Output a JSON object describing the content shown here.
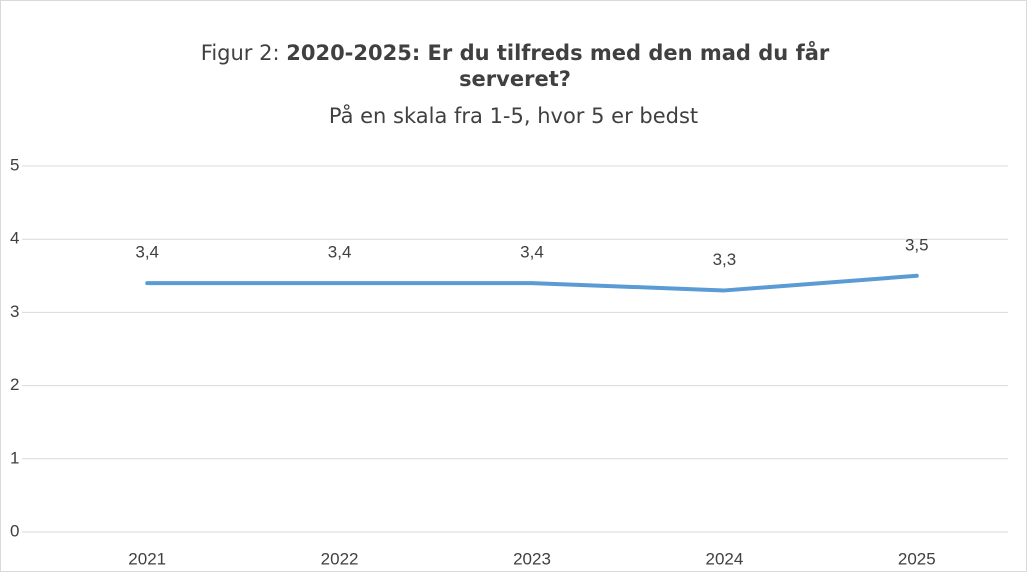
{
  "chart_data": {
    "type": "line",
    "title": {
      "prefix": "Figur 2:",
      "text": "2020-2025: Er du tilfreds med den mad du får serveret?"
    },
    "subtitle": "På en skala fra 1-5, hvor 5 er bedst",
    "categories": [
      "2021",
      "2022",
      "2023",
      "2024",
      "2025"
    ],
    "series": [
      {
        "color": "#5b9bd5",
        "values": [
          3.4,
          3.4,
          3.4,
          3.3,
          3.5
        ],
        "value_labels": [
          "3,4",
          "3,4",
          "3,4",
          "3,3",
          "3,5"
        ]
      }
    ],
    "ylim": [
      0,
      5
    ],
    "yticks": [
      0,
      1,
      2,
      3,
      4,
      5
    ],
    "grid": true
  }
}
